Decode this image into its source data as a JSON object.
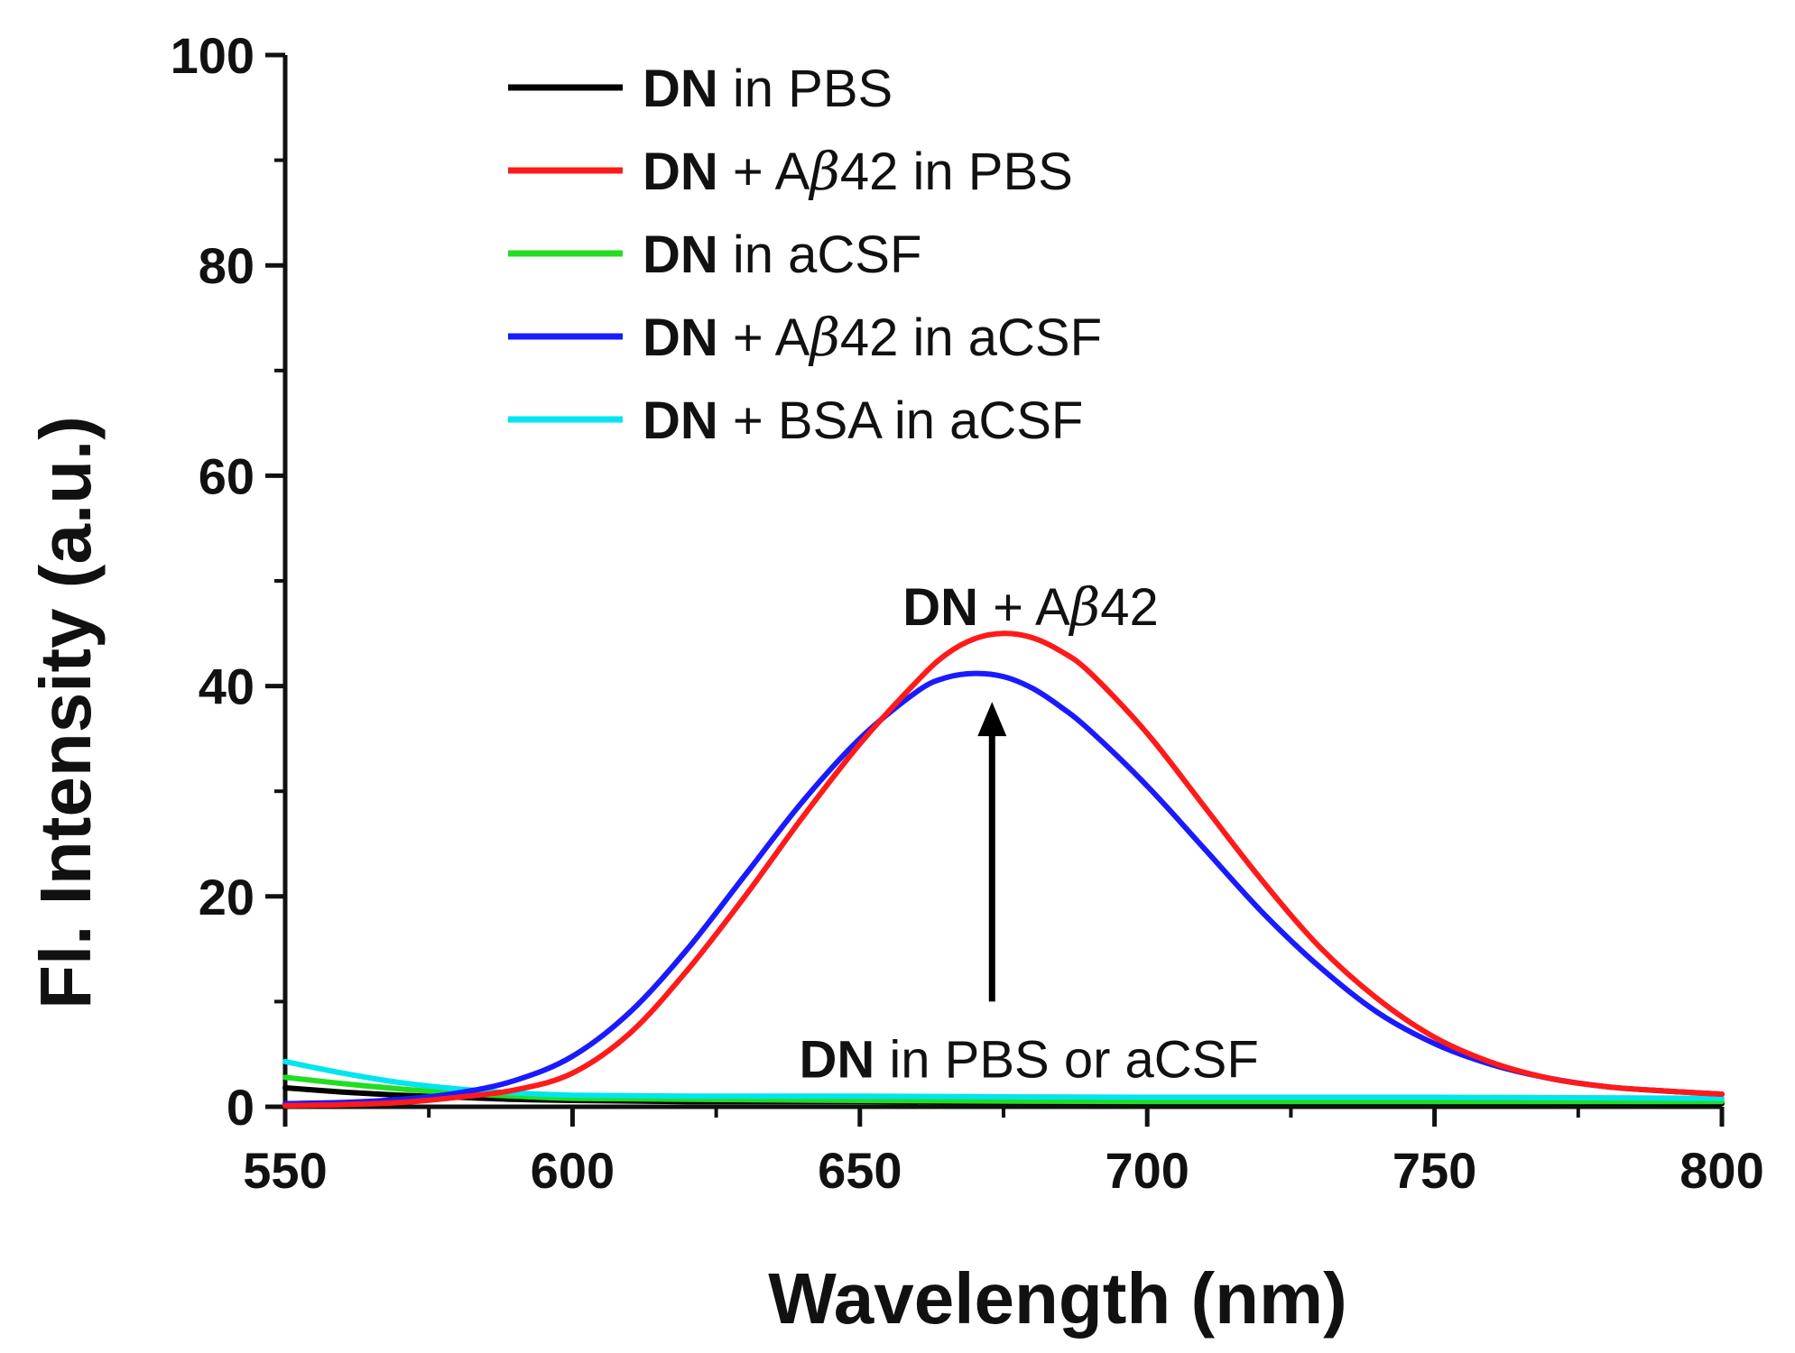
{
  "chart_data": {
    "type": "line",
    "title": "",
    "xlabel": "Wavelength (nm)",
    "ylabel": "Fl. Intensity (a.u.)",
    "xlim": [
      550,
      800
    ],
    "ylim": [
      0,
      100
    ],
    "x_ticks": [
      550,
      600,
      650,
      700,
      750,
      800
    ],
    "y_ticks": [
      0,
      20,
      40,
      60,
      80,
      100
    ],
    "legend_position": "top-left",
    "series": [
      {
        "name": "DN in PBS",
        "label_bold": "DN",
        "label_rest": " in PBS",
        "color": "#000000",
        "x": [
          550,
          560,
          570,
          580,
          590,
          600,
          620,
          650,
          700,
          750,
          800
        ],
        "y": [
          1.8,
          1.4,
          1.1,
          0.9,
          0.7,
          0.6,
          0.5,
          0.5,
          0.4,
          0.4,
          0.3
        ]
      },
      {
        "name": "DN + Aβ42 in PBS",
        "label_bold": "DN",
        "label_pre": " + A",
        "label_greek": "β",
        "label_post": "42 in PBS",
        "color": "#ff1a1a",
        "x": [
          550,
          560,
          570,
          580,
          590,
          600,
          610,
          620,
          630,
          640,
          650,
          660,
          665,
          670,
          675,
          680,
          685,
          690,
          700,
          710,
          720,
          730,
          740,
          750,
          760,
          770,
          780,
          790,
          800
        ],
        "y": [
          0.1,
          0.2,
          0.4,
          0.9,
          1.6,
          3.2,
          7.0,
          13.0,
          20.0,
          27.5,
          34.5,
          40.5,
          43.0,
          44.5,
          45.0,
          44.6,
          43.3,
          41.3,
          35.5,
          28.5,
          21.5,
          15.2,
          10.3,
          6.6,
          4.2,
          2.7,
          1.9,
          1.5,
          1.2
        ]
      },
      {
        "name": "DN in aCSF",
        "label_bold": "DN",
        "label_rest": " in aCSF",
        "color": "#22dd22",
        "x": [
          550,
          560,
          570,
          580,
          590,
          600,
          620,
          650,
          700,
          750,
          800
        ],
        "y": [
          2.8,
          2.2,
          1.7,
          1.3,
          1.0,
          0.8,
          0.7,
          0.6,
          0.5,
          0.5,
          0.5
        ]
      },
      {
        "name": "DN + Aβ42 in aCSF",
        "label_bold": "DN",
        "label_pre": " + A",
        "label_greek": "β",
        "label_post": "42 in aCSF",
        "color": "#1a1aff",
        "x": [
          550,
          560,
          570,
          580,
          590,
          600,
          610,
          620,
          630,
          640,
          650,
          660,
          665,
          670,
          675,
          680,
          685,
          690,
          700,
          710,
          720,
          730,
          740,
          750,
          760,
          770,
          780,
          790,
          800
        ],
        "y": [
          0.3,
          0.4,
          0.7,
          1.3,
          2.5,
          4.8,
          9.0,
          15.0,
          22.0,
          29.0,
          35.0,
          39.5,
          40.8,
          41.2,
          40.9,
          39.8,
          38.0,
          35.8,
          30.5,
          24.5,
          18.5,
          13.3,
          9.0,
          6.0,
          4.0,
          2.7,
          1.9,
          1.5,
          1.2
        ]
      },
      {
        "name": "DN + BSA in aCSF",
        "label_bold": "DN",
        "label_rest": " + BSA in aCSF",
        "color": "#00e5ee",
        "x": [
          550,
          560,
          570,
          580,
          590,
          600,
          620,
          650,
          700,
          750,
          800
        ],
        "y": [
          4.3,
          3.2,
          2.3,
          1.7,
          1.3,
          1.1,
          1.0,
          1.0,
          0.9,
          0.9,
          0.8
        ]
      }
    ],
    "annotations": [
      {
        "id": "peak-label",
        "bold": "DN",
        "pre": " + A",
        "greek": "β",
        "post": "42",
        "x": 675,
        "y": 47.5
      },
      {
        "id": "baseline-label",
        "bold": "DN",
        "text": " in PBS or aCSF",
        "x": 670,
        "y": 4.5
      }
    ],
    "arrow": {
      "x": 673,
      "y_start": 10,
      "y_end": 38.5,
      "color": "#000000"
    }
  }
}
